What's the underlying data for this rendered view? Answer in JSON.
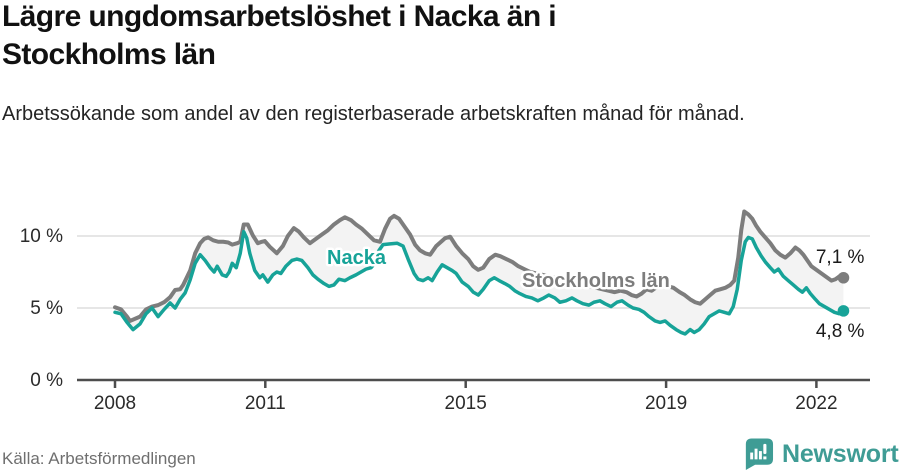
{
  "header": {
    "title": "Lägre ungdomsarbetslöshet i Nacka än i Stockholms län",
    "subtitle": "Arbetssökande som andel av den registerbaserade arbetskraften månad för månad."
  },
  "footer": {
    "source": "Källa: Arbetsförmedlingen",
    "brand": "Newsworthy",
    "brand_icon": "newsworthy-bubble-bar-chart-icon"
  },
  "colors": {
    "nacka": "#17a398",
    "stockholm": "#7d7d7d",
    "fill_between": "#f3f3f3",
    "grid": "#dedede",
    "axis": "#4d4d4d",
    "tick_text": "#2b2b2b",
    "value_text": "#1a1a1a",
    "brand": "#3f9c95"
  },
  "chart_data": {
    "type": "line",
    "title": "Lägre ungdomsarbetslöshet i Nacka än i Stockholms län",
    "subtitle": "Arbetssökande som andel av den registerbaserade arbetskraften månad för månad.",
    "source": "Källa: Arbetsförmedlingen",
    "unit": "%",
    "xlim": [
      2007.24,
      2023.07
    ],
    "ylim": [
      0,
      12.2
    ],
    "grid": "horizontal-only",
    "yticks": [
      {
        "value": 0,
        "label": "0 %"
      },
      {
        "value": 5,
        "label": "5 %"
      },
      {
        "value": 10,
        "label": "10 %"
      }
    ],
    "xticks": [
      {
        "value": 2008,
        "label": "2008"
      },
      {
        "value": 2011,
        "label": "2011"
      },
      {
        "value": 2015,
        "label": "2015"
      },
      {
        "value": 2019,
        "label": "2019"
      },
      {
        "value": 2022,
        "label": "2022"
      }
    ],
    "series_labels": [
      {
        "series": "Nacka",
        "text": "Nacka",
        "x": 2012.82,
        "y": 8.06
      },
      {
        "series": "Stockholms län",
        "text": "Stockholms län",
        "x": 2017.6,
        "y": 6.46
      }
    ],
    "series": [
      {
        "name": "Nacka",
        "color_key": "nacka",
        "end_label": "4,8 %",
        "end_value": 4.8,
        "points": [
          [
            2008.0,
            4.7
          ],
          [
            2008.12,
            4.6
          ],
          [
            2008.24,
            4.0
          ],
          [
            2008.36,
            3.5
          ],
          [
            2008.5,
            3.9
          ],
          [
            2008.62,
            4.6
          ],
          [
            2008.74,
            5.0
          ],
          [
            2008.86,
            4.4
          ],
          [
            2008.98,
            4.9
          ],
          [
            2009.1,
            5.35
          ],
          [
            2009.2,
            5.0
          ],
          [
            2009.3,
            5.6
          ],
          [
            2009.4,
            6.05
          ],
          [
            2009.5,
            6.95
          ],
          [
            2009.6,
            8.1
          ],
          [
            2009.7,
            8.7
          ],
          [
            2009.8,
            8.3
          ],
          [
            2009.9,
            7.8
          ],
          [
            2009.98,
            7.5
          ],
          [
            2010.04,
            7.9
          ],
          [
            2010.14,
            7.3
          ],
          [
            2010.22,
            7.2
          ],
          [
            2010.28,
            7.5
          ],
          [
            2010.34,
            8.1
          ],
          [
            2010.42,
            7.8
          ],
          [
            2010.5,
            8.8
          ],
          [
            2010.57,
            10.3
          ],
          [
            2010.63,
            9.85
          ],
          [
            2010.69,
            8.8
          ],
          [
            2010.79,
            7.6
          ],
          [
            2010.89,
            7.1
          ],
          [
            2010.95,
            7.3
          ],
          [
            2011.05,
            6.8
          ],
          [
            2011.15,
            7.3
          ],
          [
            2011.23,
            7.5
          ],
          [
            2011.31,
            7.4
          ],
          [
            2011.41,
            7.9
          ],
          [
            2011.53,
            8.3
          ],
          [
            2011.63,
            8.4
          ],
          [
            2011.73,
            8.3
          ],
          [
            2011.85,
            7.8
          ],
          [
            2011.95,
            7.3
          ],
          [
            2012.05,
            7.0
          ],
          [
            2012.17,
            6.7
          ],
          [
            2012.27,
            6.5
          ],
          [
            2012.37,
            6.6
          ],
          [
            2012.47,
            7.0
          ],
          [
            2012.59,
            6.9
          ],
          [
            2012.69,
            7.1
          ],
          [
            2012.81,
            7.3
          ],
          [
            2012.91,
            7.5
          ],
          [
            2013.01,
            7.7
          ],
          [
            2013.11,
            7.8
          ],
          [
            2013.21,
            8.2
          ],
          [
            2013.27,
            9.0
          ],
          [
            2013.35,
            9.4
          ],
          [
            2013.49,
            9.45
          ],
          [
            2013.63,
            9.5
          ],
          [
            2013.75,
            9.3
          ],
          [
            2013.85,
            8.4
          ],
          [
            2013.97,
            7.4
          ],
          [
            2014.05,
            7.0
          ],
          [
            2014.15,
            6.9
          ],
          [
            2014.25,
            7.1
          ],
          [
            2014.33,
            6.9
          ],
          [
            2014.43,
            7.5
          ],
          [
            2014.53,
            8.0
          ],
          [
            2014.63,
            7.8
          ],
          [
            2014.73,
            7.6
          ],
          [
            2014.81,
            7.4
          ],
          [
            2014.93,
            6.8
          ],
          [
            2015.05,
            6.5
          ],
          [
            2015.15,
            6.1
          ],
          [
            2015.25,
            5.9
          ],
          [
            2015.35,
            6.3
          ],
          [
            2015.47,
            6.9
          ],
          [
            2015.57,
            7.1
          ],
          [
            2015.67,
            6.9
          ],
          [
            2015.78,
            6.7
          ],
          [
            2015.88,
            6.5
          ],
          [
            2015.98,
            6.2
          ],
          [
            2016.08,
            6.0
          ],
          [
            2016.2,
            5.8
          ],
          [
            2016.32,
            5.7
          ],
          [
            2016.44,
            5.5
          ],
          [
            2016.56,
            5.7
          ],
          [
            2016.66,
            5.9
          ],
          [
            2016.78,
            5.7
          ],
          [
            2016.88,
            5.4
          ],
          [
            2017.0,
            5.5
          ],
          [
            2017.12,
            5.7
          ],
          [
            2017.22,
            5.5
          ],
          [
            2017.34,
            5.3
          ],
          [
            2017.46,
            5.2
          ],
          [
            2017.56,
            5.4
          ],
          [
            2017.68,
            5.5
          ],
          [
            2017.78,
            5.3
          ],
          [
            2017.9,
            5.1
          ],
          [
            2018.02,
            5.4
          ],
          [
            2018.12,
            5.5
          ],
          [
            2018.24,
            5.2
          ],
          [
            2018.34,
            5.0
          ],
          [
            2018.46,
            4.9
          ],
          [
            2018.56,
            4.7
          ],
          [
            2018.66,
            4.4
          ],
          [
            2018.78,
            4.1
          ],
          [
            2018.88,
            4.0
          ],
          [
            2018.98,
            4.1
          ],
          [
            2019.08,
            3.8
          ],
          [
            2019.2,
            3.5
          ],
          [
            2019.3,
            3.3
          ],
          [
            2019.38,
            3.2
          ],
          [
            2019.48,
            3.5
          ],
          [
            2019.56,
            3.3
          ],
          [
            2019.66,
            3.5
          ],
          [
            2019.76,
            3.9
          ],
          [
            2019.86,
            4.4
          ],
          [
            2019.96,
            4.6
          ],
          [
            2020.06,
            4.8
          ],
          [
            2020.16,
            4.7
          ],
          [
            2020.26,
            4.6
          ],
          [
            2020.34,
            5.1
          ],
          [
            2020.42,
            6.3
          ],
          [
            2020.5,
            8.3
          ],
          [
            2020.58,
            9.6
          ],
          [
            2020.64,
            9.9
          ],
          [
            2020.72,
            9.8
          ],
          [
            2020.8,
            9.2
          ],
          [
            2020.9,
            8.6
          ],
          [
            2020.98,
            8.2
          ],
          [
            2021.08,
            7.8
          ],
          [
            2021.16,
            7.5
          ],
          [
            2021.24,
            7.7
          ],
          [
            2021.34,
            7.2
          ],
          [
            2021.44,
            6.9
          ],
          [
            2021.54,
            6.6
          ],
          [
            2021.64,
            6.3
          ],
          [
            2021.72,
            6.1
          ],
          [
            2021.8,
            6.4
          ],
          [
            2021.88,
            6.0
          ],
          [
            2021.98,
            5.6
          ],
          [
            2022.06,
            5.3
          ],
          [
            2022.16,
            5.1
          ],
          [
            2022.26,
            4.9
          ],
          [
            2022.36,
            4.7
          ],
          [
            2022.46,
            4.6
          ],
          [
            2022.54,
            4.8
          ]
        ]
      },
      {
        "name": "Stockholms län",
        "color_key": "stockholm",
        "end_label": "7,1 %",
        "end_value": 7.1,
        "points": [
          [
            2008.0,
            5.05
          ],
          [
            2008.12,
            4.9
          ],
          [
            2008.24,
            4.4
          ],
          [
            2008.3,
            4.1
          ],
          [
            2008.5,
            4.4
          ],
          [
            2008.62,
            4.9
          ],
          [
            2008.74,
            5.1
          ],
          [
            2008.86,
            5.2
          ],
          [
            2008.98,
            5.4
          ],
          [
            2009.1,
            5.75
          ],
          [
            2009.2,
            6.25
          ],
          [
            2009.3,
            6.3
          ],
          [
            2009.36,
            6.6
          ],
          [
            2009.5,
            7.6
          ],
          [
            2009.6,
            8.8
          ],
          [
            2009.7,
            9.5
          ],
          [
            2009.78,
            9.8
          ],
          [
            2009.86,
            9.9
          ],
          [
            2009.96,
            9.7
          ],
          [
            2010.06,
            9.6
          ],
          [
            2010.16,
            9.6
          ],
          [
            2010.26,
            9.55
          ],
          [
            2010.34,
            9.4
          ],
          [
            2010.44,
            9.5
          ],
          [
            2010.5,
            9.6
          ],
          [
            2010.57,
            10.8
          ],
          [
            2010.65,
            10.8
          ],
          [
            2010.75,
            10.05
          ],
          [
            2010.85,
            9.5
          ],
          [
            2010.93,
            9.6
          ],
          [
            2010.99,
            9.65
          ],
          [
            2011.09,
            9.25
          ],
          [
            2011.23,
            8.8
          ],
          [
            2011.35,
            9.3
          ],
          [
            2011.45,
            10.0
          ],
          [
            2011.57,
            10.55
          ],
          [
            2011.67,
            10.3
          ],
          [
            2011.77,
            9.9
          ],
          [
            2011.89,
            9.5
          ],
          [
            2012.01,
            9.8
          ],
          [
            2012.13,
            10.1
          ],
          [
            2012.25,
            10.4
          ],
          [
            2012.37,
            10.8
          ],
          [
            2012.49,
            11.1
          ],
          [
            2012.59,
            11.3
          ],
          [
            2012.71,
            11.1
          ],
          [
            2012.81,
            10.8
          ],
          [
            2012.93,
            10.5
          ],
          [
            2013.05,
            10.1
          ],
          [
            2013.17,
            9.7
          ],
          [
            2013.29,
            9.6
          ],
          [
            2013.39,
            10.5
          ],
          [
            2013.49,
            11.2
          ],
          [
            2013.57,
            11.4
          ],
          [
            2013.67,
            11.2
          ],
          [
            2013.79,
            10.6
          ],
          [
            2013.89,
            10.1
          ],
          [
            2013.99,
            9.4
          ],
          [
            2014.09,
            9.0
          ],
          [
            2014.19,
            8.8
          ],
          [
            2014.29,
            8.7
          ],
          [
            2014.41,
            9.3
          ],
          [
            2014.59,
            9.85
          ],
          [
            2014.69,
            9.95
          ],
          [
            2014.81,
            9.3
          ],
          [
            2014.93,
            8.8
          ],
          [
            2015.05,
            8.4
          ],
          [
            2015.15,
            7.9
          ],
          [
            2015.25,
            7.65
          ],
          [
            2015.35,
            7.8
          ],
          [
            2015.47,
            8.4
          ],
          [
            2015.59,
            8.7
          ],
          [
            2015.69,
            8.6
          ],
          [
            2015.81,
            8.4
          ],
          [
            2015.93,
            8.2
          ],
          [
            2016.05,
            7.9
          ],
          [
            2016.17,
            7.7
          ],
          [
            2016.29,
            7.5
          ],
          [
            2016.41,
            7.4
          ],
          [
            2016.53,
            7.3
          ],
          [
            2016.65,
            7.2
          ],
          [
            2016.77,
            7.1
          ],
          [
            2016.89,
            7.0
          ],
          [
            2017.01,
            6.9
          ],
          [
            2017.13,
            6.8
          ],
          [
            2017.25,
            6.7
          ],
          [
            2017.37,
            6.6
          ],
          [
            2017.49,
            6.5
          ],
          [
            2017.61,
            6.4
          ],
          [
            2017.73,
            6.3
          ],
          [
            2017.85,
            6.2
          ],
          [
            2017.97,
            6.1
          ],
          [
            2018.09,
            6.2
          ],
          [
            2018.21,
            6.1
          ],
          [
            2018.31,
            5.9
          ],
          [
            2018.41,
            5.8
          ],
          [
            2018.51,
            6.0
          ],
          [
            2018.61,
            6.3
          ],
          [
            2018.71,
            6.2
          ],
          [
            2018.83,
            6.5
          ],
          [
            2018.95,
            6.6
          ],
          [
            2019.05,
            6.5
          ],
          [
            2019.15,
            6.4
          ],
          [
            2019.27,
            6.1
          ],
          [
            2019.37,
            5.9
          ],
          [
            2019.48,
            5.6
          ],
          [
            2019.58,
            5.4
          ],
          [
            2019.68,
            5.3
          ],
          [
            2019.78,
            5.6
          ],
          [
            2019.88,
            5.9
          ],
          [
            2019.98,
            6.2
          ],
          [
            2020.08,
            6.3
          ],
          [
            2020.18,
            6.4
          ],
          [
            2020.28,
            6.6
          ],
          [
            2020.36,
            6.9
          ],
          [
            2020.44,
            8.5
          ],
          [
            2020.5,
            10.4
          ],
          [
            2020.56,
            11.7
          ],
          [
            2020.64,
            11.5
          ],
          [
            2020.72,
            11.2
          ],
          [
            2020.8,
            10.7
          ],
          [
            2020.88,
            10.3
          ],
          [
            2020.98,
            9.9
          ],
          [
            2021.08,
            9.5
          ],
          [
            2021.18,
            9.0
          ],
          [
            2021.28,
            8.7
          ],
          [
            2021.38,
            8.5
          ],
          [
            2021.48,
            8.8
          ],
          [
            2021.58,
            9.2
          ],
          [
            2021.66,
            9.0
          ],
          [
            2021.74,
            8.7
          ],
          [
            2021.82,
            8.3
          ],
          [
            2021.9,
            7.9
          ],
          [
            2021.98,
            7.7
          ],
          [
            2022.06,
            7.5
          ],
          [
            2022.14,
            7.3
          ],
          [
            2022.22,
            7.1
          ],
          [
            2022.3,
            6.9
          ],
          [
            2022.38,
            7.0
          ],
          [
            2022.46,
            7.2
          ],
          [
            2022.54,
            7.1
          ]
        ]
      }
    ]
  }
}
